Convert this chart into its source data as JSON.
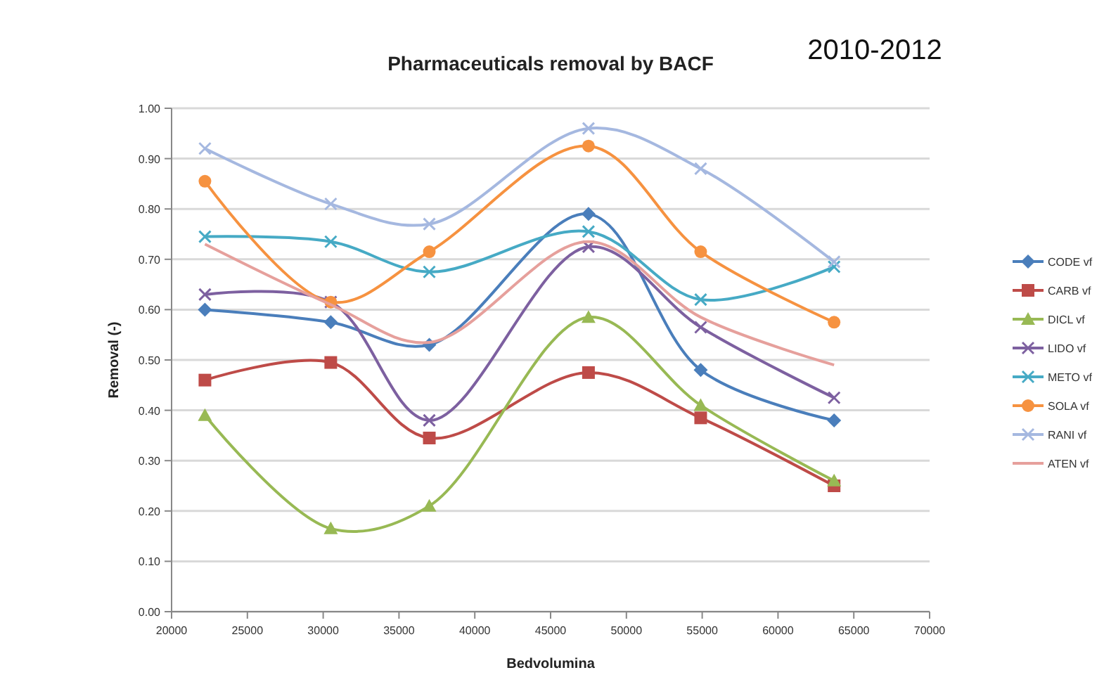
{
  "chart_data": {
    "type": "line",
    "title": "Pharmaceuticals removal by BACF",
    "xlabel": "Bedvolumina",
    "ylabel": "Removal (-)",
    "annotations": [
      "2010-2012"
    ],
    "x": [
      22200,
      30500,
      37000,
      47500,
      54900,
      63700
    ],
    "xlim": [
      20000,
      70000
    ],
    "xticks": [
      20000,
      25000,
      30000,
      35000,
      40000,
      45000,
      50000,
      55000,
      60000,
      65000,
      70000
    ],
    "ylim": [
      0,
      1
    ],
    "yticks": [
      {
        "value": 0,
        "label": "0.00"
      },
      {
        "value": 0.1,
        "label": "0.10"
      },
      {
        "value": 0.2,
        "label": "0.20"
      },
      {
        "value": 0.3,
        "label": "0.30"
      },
      {
        "value": 0.4,
        "label": "0.40"
      },
      {
        "value": 0.5,
        "label": "0.50"
      },
      {
        "value": 0.6,
        "label": "0.60"
      },
      {
        "value": 0.7,
        "label": "0.70"
      },
      {
        "value": 0.8,
        "label": "0.80"
      },
      {
        "value": 0.9,
        "label": "0.90"
      },
      {
        "value": 1,
        "label": "1.00"
      }
    ],
    "grid": "y",
    "legend": "right",
    "line_style": "solid",
    "series": [
      {
        "name": "CODE vf",
        "color": "#4a7ebb",
        "marker": "diamond",
        "values": [
          0.6,
          0.575,
          0.53,
          0.79,
          0.48,
          0.38
        ]
      },
      {
        "name": "CARB vf",
        "color": "#be4b48",
        "marker": "square",
        "values": [
          0.46,
          0.495,
          0.345,
          0.475,
          0.385,
          0.25
        ]
      },
      {
        "name": "DICL vf",
        "color": "#98b954",
        "marker": "triangle",
        "values": [
          0.39,
          0.165,
          0.21,
          0.585,
          0.41,
          0.26
        ]
      },
      {
        "name": "LIDO vf",
        "color": "#7d60a0",
        "marker": "cross",
        "values": [
          0.63,
          0.615,
          0.38,
          0.725,
          0.565,
          0.425
        ]
      },
      {
        "name": "METO vf",
        "color": "#46aac5",
        "marker": "cross",
        "values": [
          0.745,
          0.735,
          0.675,
          0.755,
          0.62,
          0.685
        ]
      },
      {
        "name": "SOLA vf",
        "color": "#f69240",
        "marker": "circle",
        "values": [
          0.855,
          0.615,
          0.715,
          0.925,
          0.715,
          0.575
        ]
      },
      {
        "name": "RANI vf",
        "color": "#a5b8e0",
        "marker": "cross",
        "values": [
          0.92,
          0.81,
          0.77,
          0.96,
          0.88,
          0.695
        ]
      },
      {
        "name": "ATEN vf",
        "color": "#e6a09c",
        "marker": "none",
        "values": [
          0.73,
          0.61,
          0.535,
          0.735,
          0.585,
          0.49
        ]
      }
    ]
  }
}
